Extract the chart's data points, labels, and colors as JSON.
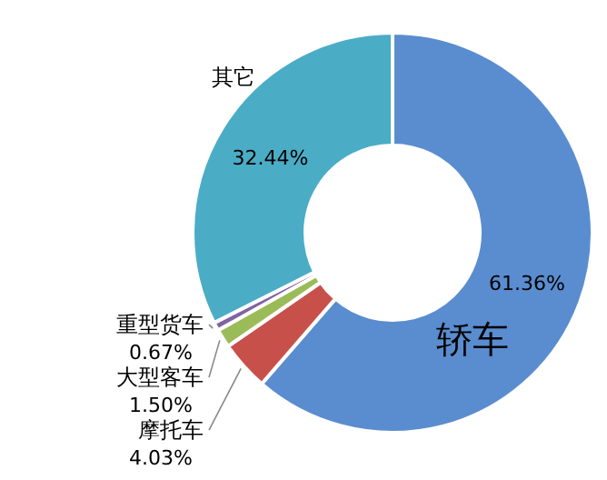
{
  "chart_data": {
    "type": "donut",
    "categories": [
      "轿车",
      "摩托车",
      "大型客车",
      "重型货车",
      "其它"
    ],
    "values": [
      61.36,
      4.03,
      1.5,
      0.67,
      32.44
    ],
    "value_labels": [
      "61.36%",
      "4.03%",
      "1.50%",
      "0.67%",
      "32.44%"
    ],
    "colors": [
      "#5a8dcf",
      "#c8504b",
      "#9bbb59",
      "#8064a2",
      "#4bacc6"
    ]
  }
}
